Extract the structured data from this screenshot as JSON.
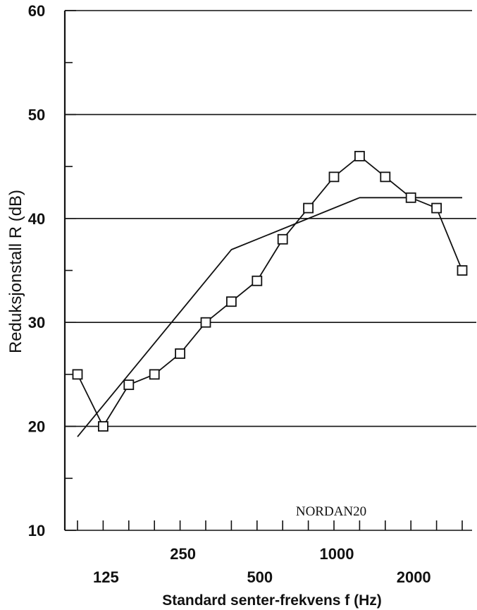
{
  "chart_data": {
    "type": "line",
    "title": "",
    "xlabel": "Standard senter-frekvens f (Hz)",
    "ylabel": "Reduksjonstall R (dB)",
    "ylim": [
      10,
      60
    ],
    "yticks": [
      10,
      20,
      30,
      40,
      50,
      60
    ],
    "grid": "horizontal at 20, 30, 40, 50",
    "x_scale": "log (one-third octave bands)",
    "categories": [
      "100",
      "125",
      "160",
      "200",
      "250",
      "315",
      "400",
      "500",
      "630",
      "800",
      "1000",
      "1250",
      "1600",
      "2000",
      "2500",
      "3150"
    ],
    "x_tick_labels_upper": [
      "250",
      "1000"
    ],
    "x_tick_labels_lower": [
      "125",
      "500",
      "2000"
    ],
    "series": [
      {
        "marker": "square",
        "values": [
          25,
          20,
          24,
          25,
          27,
          30,
          32,
          34,
          38,
          41,
          44,
          46,
          44,
          42,
          41,
          35
        ]
      },
      {
        "marker": "none",
        "x": [
          "100",
          "400",
          "1250",
          "3150"
        ],
        "values": [
          19,
          37,
          42,
          42
        ]
      }
    ],
    "annotations": [
      "NORDAN20"
    ]
  },
  "colors": {
    "ink": "#111111",
    "background": "#ffffff"
  }
}
